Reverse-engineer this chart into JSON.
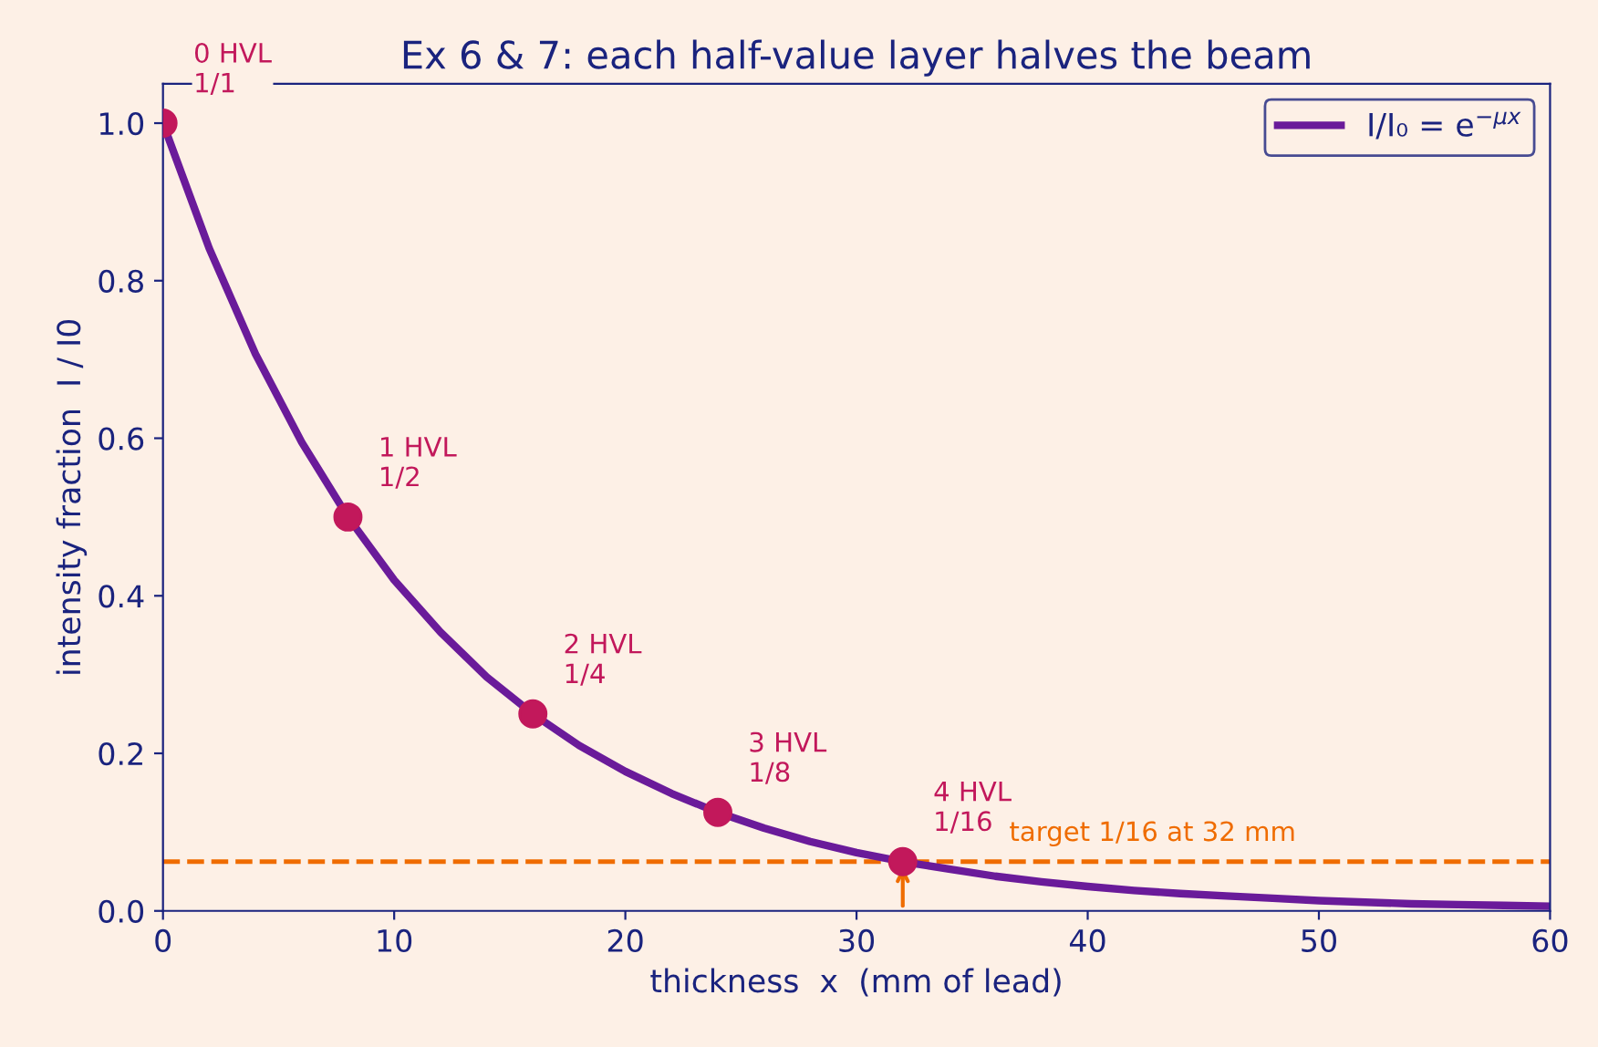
{
  "chart_data": {
    "type": "line",
    "title": "Ex 6 & 7: each half-value layer halves the beam",
    "xlabel": "thickness  x  (mm of lead)",
    "ylabel": "intensity fraction  I / I0",
    "xlim": [
      0,
      60
    ],
    "ylim": [
      0,
      1.05
    ],
    "xticks": [
      0,
      10,
      20,
      30,
      40,
      50,
      60
    ],
    "yticks": [
      {
        "value": 0,
        "label": "0.0"
      },
      {
        "value": 0.2,
        "label": "0.2"
      },
      {
        "value": 0.4,
        "label": "0.4"
      },
      {
        "value": 0.6,
        "label": "0.6"
      },
      {
        "value": 0.8,
        "label": "0.8"
      },
      {
        "value": 1.0,
        "label": "1.0"
      }
    ],
    "grid": false,
    "legend": "top right",
    "series": [
      {
        "name": "I/I₀ = e$^{−μx}$",
        "color": "#6a1b9a",
        "marker": "none",
        "line_style": "solid",
        "x": [
          0,
          2,
          4,
          6,
          8,
          10,
          12,
          14,
          16,
          18,
          20,
          22,
          24,
          26,
          28,
          30,
          32,
          34,
          36,
          38,
          40,
          42,
          44,
          46,
          48,
          50,
          52,
          54,
          56,
          58,
          60
        ],
        "values": [
          1,
          0.841,
          0.707,
          0.595,
          0.5,
          0.42,
          0.354,
          0.297,
          0.25,
          0.21,
          0.177,
          0.149,
          0.125,
          0.105,
          0.088,
          0.074,
          0.0625,
          0.053,
          0.044,
          0.037,
          0.031,
          0.026,
          0.022,
          0.019,
          0.016,
          0.013,
          0.011,
          0.009,
          0.008,
          0.007,
          0.006
        ]
      },
      {
        "type": "scatter",
        "color": "#c2185b",
        "marker": "circle",
        "x": [
          0,
          8,
          16,
          24,
          32
        ],
        "values": [
          1,
          0.5,
          0.25,
          0.125,
          0.0625
        ]
      }
    ],
    "ref_lines": [
      {
        "axis": "y",
        "value": 0.0625,
        "label": "target 1/16 at 32 mm",
        "color": "#ef6c00",
        "line_style": "dashed"
      }
    ],
    "annotations": [
      {
        "text": "0 HVL\n1/1",
        "x": 0,
        "y": 1
      },
      {
        "text": "1 HVL\n1/2",
        "x": 8,
        "y": 0.5
      },
      {
        "text": "2 HVL\n1/4",
        "x": 16,
        "y": 0.25
      },
      {
        "text": "3 HVL\n1/8",
        "x": 24,
        "y": 0.125
      },
      {
        "text": "4 HVL\n1/16",
        "x": 32,
        "y": 0.0625
      }
    ]
  }
}
